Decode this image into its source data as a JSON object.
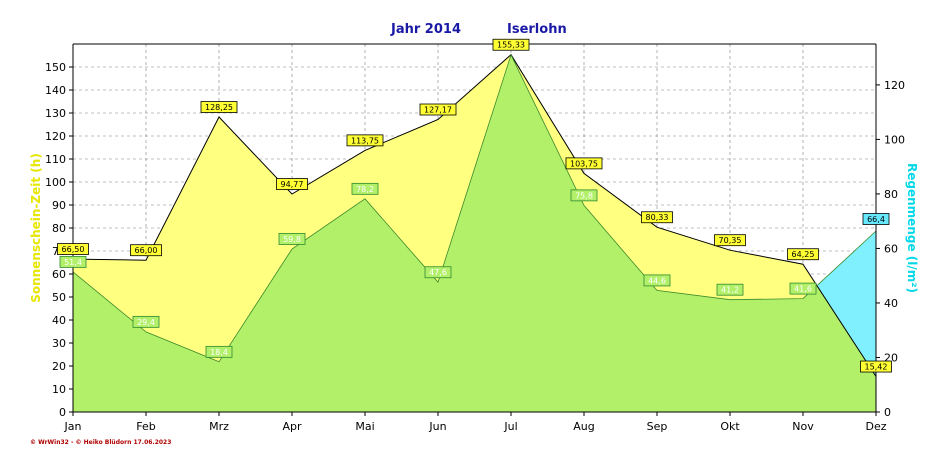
{
  "header": {
    "year_text": "Jahr  2014",
    "city": "Iserlohn"
  },
  "footer": {
    "credit": "© WrWin32  -  © Heiko Blüdorn  17.06.2023"
  },
  "colors": {
    "sunshine_fill": "#ffff80",
    "rain_fill_green": "#b3f06a",
    "rain_fill_cyan": "#80f0ff",
    "grid": "#808080",
    "axis_title_left": "#e6e600",
    "axis_title_right": "#00d8e8"
  },
  "chart_data": {
    "type": "area",
    "title": "Jahr  2014  Iserlohn",
    "categories": [
      "Jan",
      "Feb",
      "Mrz",
      "Apr",
      "Mai",
      "Jun",
      "Jul",
      "Aug",
      "Sep",
      "Okt",
      "Nov",
      "Dez"
    ],
    "ylabel_left": "Sonnenschein-Zeit  (h)",
    "ylabel_right": "Regenmenge  (l/m²)",
    "ylim_left": [
      0,
      160
    ],
    "ylim_right": [
      0,
      135
    ],
    "yticks_left": [
      0,
      10,
      20,
      30,
      40,
      50,
      60,
      70,
      80,
      90,
      100,
      110,
      120,
      130,
      140,
      150
    ],
    "yticks_right": [
      0,
      20,
      40,
      60,
      80,
      100,
      120
    ],
    "grid": true,
    "series": [
      {
        "name": "Sonnenschein-Zeit",
        "axis": "left",
        "values": [
          66.5,
          66.0,
          128.25,
          94.77,
          113.75,
          127.17,
          155.33,
          103.75,
          80.33,
          70.35,
          64.25,
          15.42
        ],
        "labels": [
          "66,50",
          "66,00",
          "128,25",
          "94,77",
          "113,75",
          "127,17",
          "155,33",
          "103,75",
          "80,33",
          "70,35",
          "64,25",
          "15,42"
        ]
      },
      {
        "name": "Regenmenge",
        "axis": "right",
        "values": [
          51.4,
          29.4,
          18.4,
          59.8,
          78.2,
          47.6,
          131.0,
          75.8,
          44.6,
          41.2,
          41.6,
          66.4
        ],
        "labels": [
          "51,4",
          "29,4",
          "18,4",
          "59,8",
          "78,2",
          "47,6",
          "",
          "75,8",
          "44,6",
          "41,2",
          "41,6",
          "66,4"
        ]
      }
    ]
  }
}
